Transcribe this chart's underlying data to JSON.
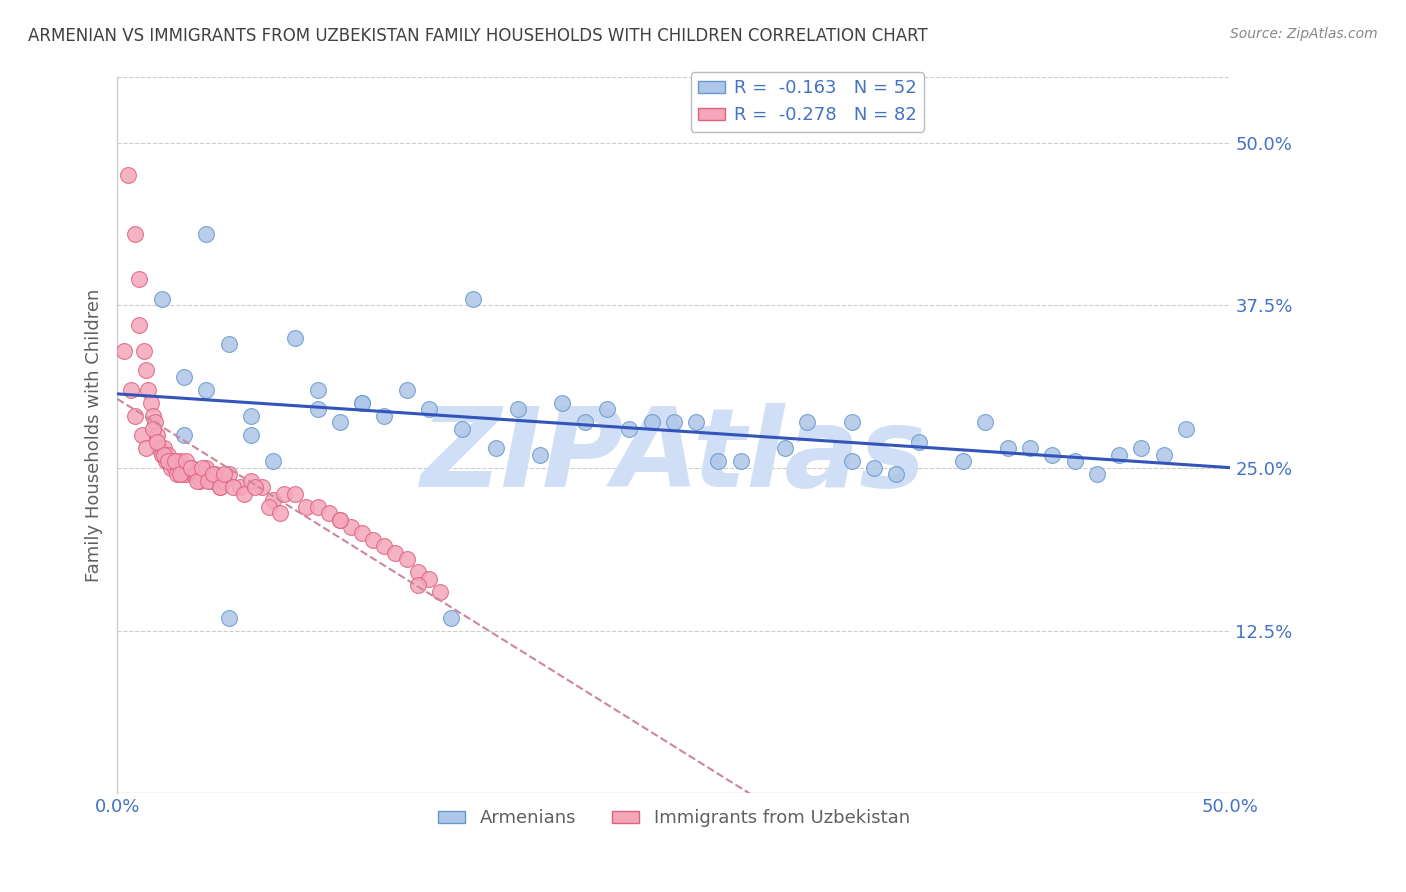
{
  "title": "ARMENIAN VS IMMIGRANTS FROM UZBEKISTAN FAMILY HOUSEHOLDS WITH CHILDREN CORRELATION CHART",
  "source": "Source: ZipAtlas.com",
  "ylabel": "Family Households with Children",
  "xlim": [
    0.0,
    0.5
  ],
  "ylim": [
    0.0,
    0.55
  ],
  "yticks": [
    0.125,
    0.25,
    0.375,
    0.5
  ],
  "xticks": [
    0.0,
    0.5
  ],
  "x_tick_labels": [
    "0.0%",
    "50.0%"
  ],
  "y_tick_labels": [
    "12.5%",
    "25.0%",
    "37.5%",
    "50.0%"
  ],
  "legend_entries": [
    {
      "label": "R =  -0.163   N = 52",
      "color": "#aec6e8"
    },
    {
      "label": "R =  -0.278   N = 82",
      "color": "#f4a7b9"
    }
  ],
  "legend_bottom": [
    "Armenians",
    "Immigrants from Uzbekistan"
  ],
  "blue_line_color": "#3355bb",
  "pink_line_color": "#cc8899",
  "watermark": "ZIPAtlas",
  "watermark_color": "#d0dff5",
  "background_color": "#ffffff",
  "grid_color": "#cccccc",
  "title_color": "#404040",
  "tick_label_color": "#4472c4",
  "blue_scatter_color": "#aec6e8",
  "pink_scatter_color": "#f4a7b9",
  "blue_scatter_edge": "#6699cc",
  "pink_scatter_edge": "#e06080",
  "blue_x": [
    0.04,
    0.02,
    0.05,
    0.03,
    0.04,
    0.06,
    0.08,
    0.09,
    0.1,
    0.11,
    0.12,
    0.13,
    0.14,
    0.155,
    0.17,
    0.18,
    0.19,
    0.2,
    0.22,
    0.24,
    0.26,
    0.28,
    0.3,
    0.33,
    0.34,
    0.36,
    0.38,
    0.4,
    0.42,
    0.44,
    0.46,
    0.48,
    0.03,
    0.06,
    0.07,
    0.09,
    0.11,
    0.25,
    0.27,
    0.31,
    0.33,
    0.39,
    0.43,
    0.47,
    0.05,
    0.15,
    0.16,
    0.21,
    0.23,
    0.35,
    0.41,
    0.45
  ],
  "blue_y": [
    0.43,
    0.38,
    0.345,
    0.32,
    0.31,
    0.29,
    0.35,
    0.31,
    0.285,
    0.3,
    0.29,
    0.31,
    0.295,
    0.28,
    0.265,
    0.295,
    0.26,
    0.3,
    0.295,
    0.285,
    0.285,
    0.255,
    0.265,
    0.285,
    0.25,
    0.27,
    0.255,
    0.265,
    0.26,
    0.245,
    0.265,
    0.28,
    0.275,
    0.275,
    0.255,
    0.295,
    0.3,
    0.285,
    0.255,
    0.285,
    0.255,
    0.285,
    0.255,
    0.26,
    0.135,
    0.135,
    0.38,
    0.285,
    0.28,
    0.245,
    0.265,
    0.26
  ],
  "pink_x": [
    0.005,
    0.008,
    0.01,
    0.01,
    0.012,
    0.013,
    0.014,
    0.015,
    0.016,
    0.017,
    0.018,
    0.019,
    0.02,
    0.021,
    0.022,
    0.023,
    0.024,
    0.025,
    0.026,
    0.027,
    0.028,
    0.029,
    0.03,
    0.031,
    0.032,
    0.033,
    0.034,
    0.035,
    0.036,
    0.037,
    0.038,
    0.04,
    0.042,
    0.044,
    0.046,
    0.048,
    0.05,
    0.055,
    0.06,
    0.065,
    0.07,
    0.075,
    0.08,
    0.085,
    0.09,
    0.095,
    0.1,
    0.105,
    0.11,
    0.115,
    0.12,
    0.125,
    0.13,
    0.135,
    0.14,
    0.145,
    0.003,
    0.006,
    0.008,
    0.011,
    0.013,
    0.016,
    0.018,
    0.021,
    0.023,
    0.026,
    0.028,
    0.031,
    0.033,
    0.036,
    0.038,
    0.041,
    0.043,
    0.046,
    0.048,
    0.052,
    0.057,
    0.062,
    0.068,
    0.073,
    0.1,
    0.135
  ],
  "pink_y": [
    0.475,
    0.43,
    0.395,
    0.36,
    0.34,
    0.325,
    0.31,
    0.3,
    0.29,
    0.285,
    0.275,
    0.265,
    0.26,
    0.265,
    0.255,
    0.26,
    0.25,
    0.255,
    0.25,
    0.245,
    0.255,
    0.245,
    0.25,
    0.245,
    0.25,
    0.25,
    0.245,
    0.245,
    0.245,
    0.24,
    0.245,
    0.25,
    0.24,
    0.245,
    0.235,
    0.24,
    0.245,
    0.235,
    0.24,
    0.235,
    0.225,
    0.23,
    0.23,
    0.22,
    0.22,
    0.215,
    0.21,
    0.205,
    0.2,
    0.195,
    0.19,
    0.185,
    0.18,
    0.17,
    0.165,
    0.155,
    0.34,
    0.31,
    0.29,
    0.275,
    0.265,
    0.28,
    0.27,
    0.26,
    0.255,
    0.255,
    0.245,
    0.255,
    0.25,
    0.24,
    0.25,
    0.24,
    0.245,
    0.235,
    0.245,
    0.235,
    0.23,
    0.235,
    0.22,
    0.215,
    0.21,
    0.16
  ]
}
